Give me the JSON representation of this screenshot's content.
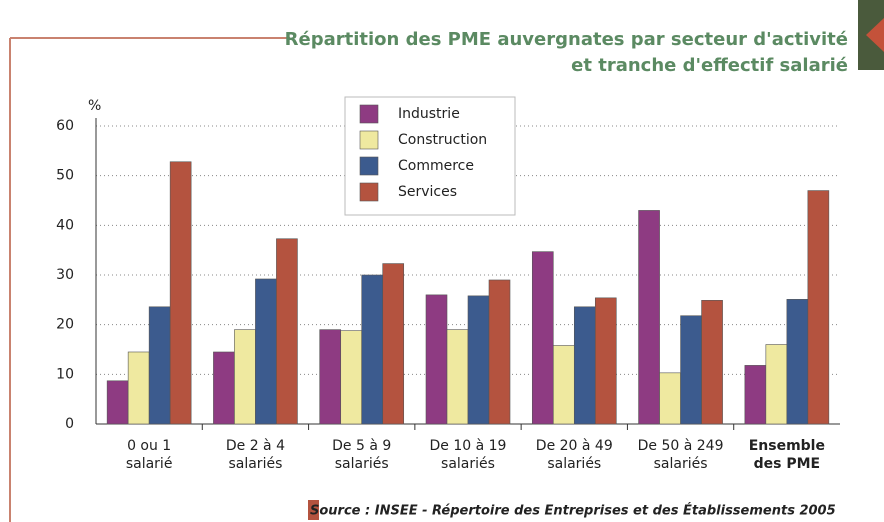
{
  "chart_data": {
    "type": "bar",
    "title": [
      "Répartition des PME auvergnates par secteur d'activité",
      "et tranche d'effectif salarié"
    ],
    "y_label": "%",
    "source": "Source : INSEE - Répertoire des Entreprises et des Établissements 2005",
    "categories": [
      [
        "0 ou 1",
        "salarié"
      ],
      [
        "De 2 à 4",
        "salariés"
      ],
      [
        "De 5 à 9",
        "salariés"
      ],
      [
        "De 10 à 19",
        "salariés"
      ],
      [
        "De 20 à 49",
        "salariés"
      ],
      [
        "De 50 à 249",
        "salariés"
      ],
      [
        "Ensemble",
        "des PME"
      ]
    ],
    "series": [
      {
        "name": "Industrie",
        "color": "#8e3b82",
        "values": [
          8.7,
          14.5,
          19,
          26,
          34.7,
          43,
          11.8
        ]
      },
      {
        "name": "Construction",
        "color": "#efe9a0",
        "values": [
          14.5,
          19,
          18.8,
          19,
          15.8,
          10.3,
          16
        ]
      },
      {
        "name": "Commerce",
        "color": "#3c5b8e",
        "values": [
          23.6,
          29.2,
          30,
          25.8,
          23.6,
          21.8,
          25.1
        ]
      },
      {
        "name": "Services",
        "color": "#b4533f",
        "values": [
          52.8,
          37.3,
          32.3,
          29,
          25.4,
          24.9,
          47
        ]
      }
    ],
    "ylim": [
      0,
      60
    ],
    "yticks": [
      0,
      10,
      20,
      30,
      40,
      50,
      60
    ],
    "grid": true,
    "legend": "top"
  }
}
